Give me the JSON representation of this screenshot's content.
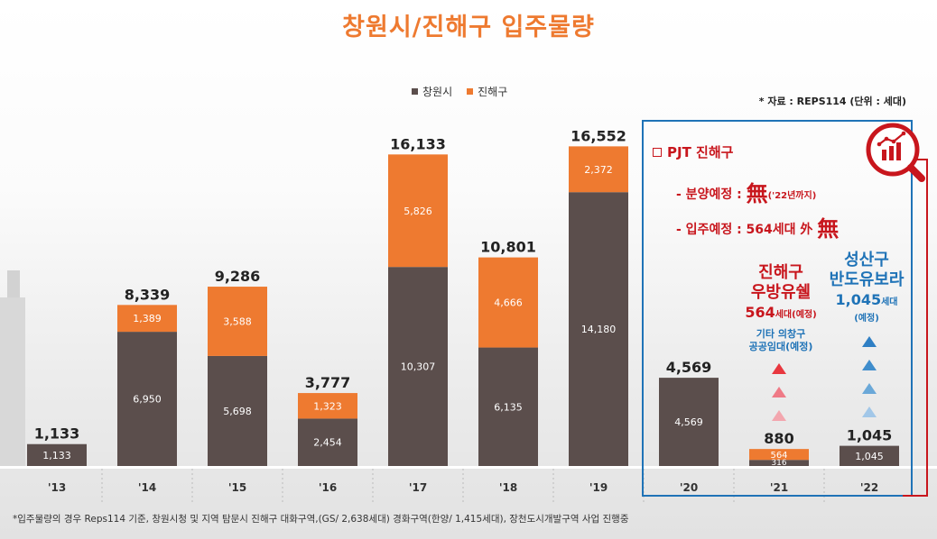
{
  "title": "창원시/진해구 입주물량",
  "source": "* 자료 : REPS114 (단위 : 세대)",
  "footnote": "*입주물량의 경우 Reps114 기준, 창원시청 및 지역 탐문시 진해구 대화구역,(GS/ 2,638세대) 경화구역(한양/ 1,415세대), 장천도시개발구역  사업 진행중",
  "colors": {
    "changwon": "#5b4e4c",
    "jinhae": "#ee7a30",
    "title": "#ee7a30",
    "pjt_red": "#c8161d",
    "pjt_blue": "#1f73b7"
  },
  "legend": {
    "changwon": "창원시",
    "jinhae": "진해구"
  },
  "chart_data": {
    "type": "bar",
    "stacked": true,
    "title": "창원시/진해구 입주물량",
    "categories": [
      "'13",
      "'14",
      "'15",
      "'16",
      "'17",
      "'18",
      "'19",
      "'20",
      "'21",
      "'22"
    ],
    "series": [
      {
        "name": "창원시",
        "values": [
          1133,
          6950,
          5698,
          2454,
          10307,
          6135,
          14180,
          4569,
          316,
          1045
        ],
        "labels": [
          "1,133",
          "6,950",
          "5,698",
          "2,454",
          "10,307",
          "6,135",
          "14,180",
          "4,569",
          "316",
          "1,045"
        ]
      },
      {
        "name": "진해구",
        "values": [
          0,
          1389,
          3588,
          1323,
          5826,
          4666,
          2372,
          0,
          564,
          0
        ],
        "labels": [
          "",
          "1,389",
          "3,588",
          "1,323",
          "5,826",
          "4,666",
          "2,372",
          "",
          "564",
          ""
        ]
      }
    ],
    "totals": [
      1133,
      8339,
      9286,
      3777,
      16133,
      10801,
      16552,
      4569,
      880,
      1045
    ],
    "total_labels": [
      "1,133",
      "8,339",
      "9,286",
      "3,777",
      "16,133",
      "10,801",
      "16,552",
      "4,569",
      "880",
      "1,045"
    ],
    "ylim": [
      0,
      20500
    ],
    "xlabel": "",
    "ylabel": ""
  },
  "pjt": {
    "title": "PJT 진해구",
    "line1_prefix": "- 분양예정 : ",
    "line1_glyph": "無",
    "line1_note": "('22년까지)",
    "line2_prefix": "- 입주예정 : 564세대 外 ",
    "line2_glyph": "無"
  },
  "annotations": {
    "jinhae_project": {
      "line1": "진해구",
      "line2": "우방유쉘",
      "count": "564",
      "unit": "세대(예정)",
      "sub1": "기타 의창구",
      "sub2": "공공임대(예정)"
    },
    "seongsan_project": {
      "line1": "성산구",
      "line2": "반도유보라",
      "count": "1,045",
      "unit": "세대",
      "sub": "(예정)"
    }
  }
}
